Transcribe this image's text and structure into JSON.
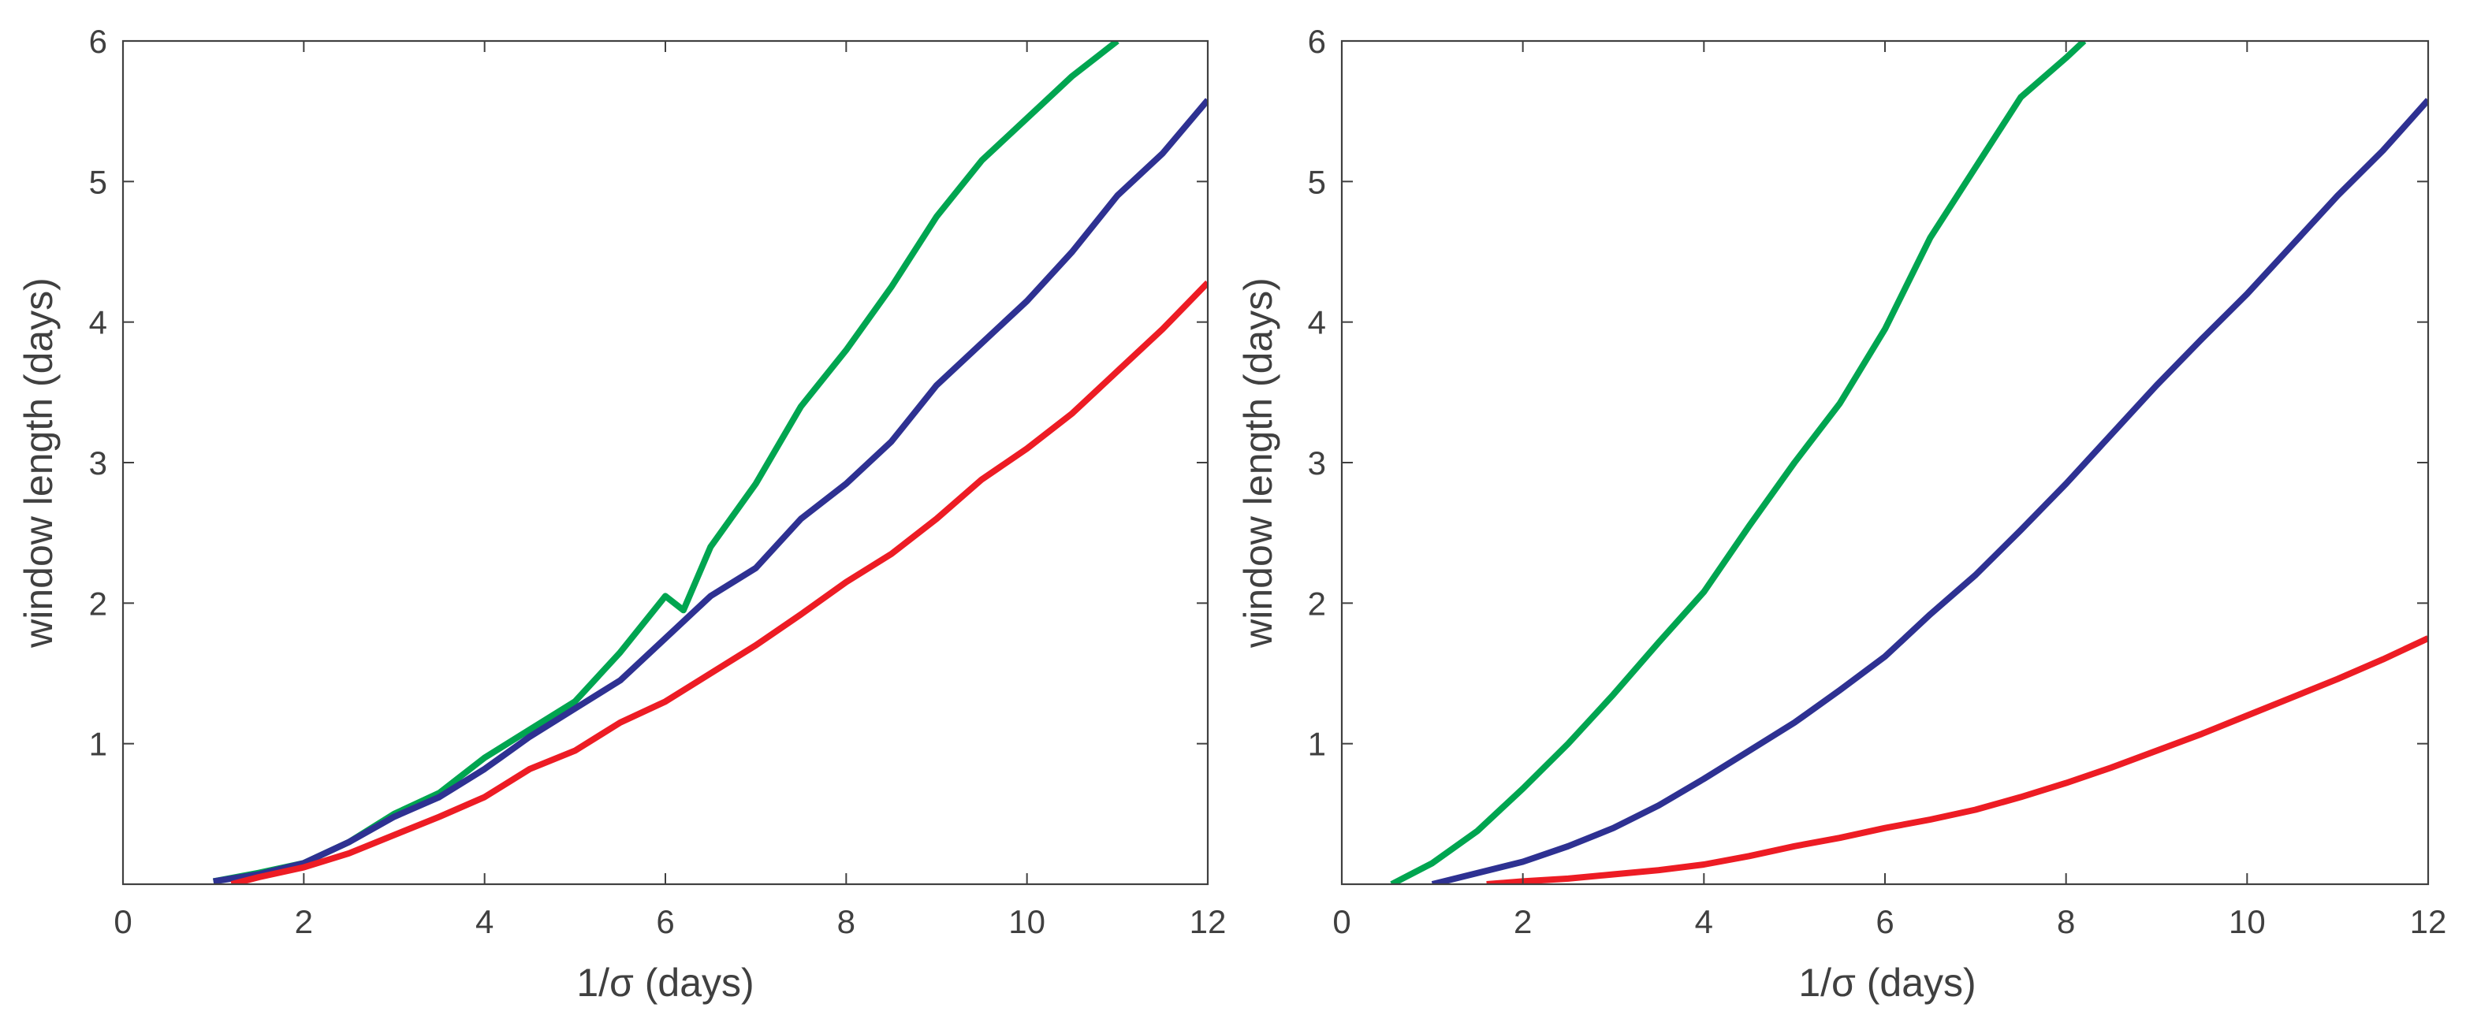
{
  "chart_data": [
    {
      "type": "line",
      "title": "",
      "xlabel": "1/σ (days)",
      "ylabel": "window length (days)",
      "xlim": [
        0,
        12
      ],
      "ylim": [
        0.0,
        6
      ],
      "xticks": [
        0,
        2,
        4,
        6,
        8,
        10,
        12
      ],
      "xtick_labels": [
        "0",
        "2",
        "4",
        "6",
        "8",
        "10",
        "12"
      ],
      "yticks": [
        1,
        2,
        3,
        4,
        5,
        6
      ],
      "ytick_labels": [
        "1",
        "2",
        "3",
        "4",
        "5",
        "6"
      ],
      "grid": false,
      "series": [
        {
          "name": "green",
          "color": "#00a550",
          "x": [
            1.0,
            1.5,
            2.0,
            2.5,
            3.0,
            3.5,
            4.0,
            4.5,
            5.0,
            5.5,
            6.0,
            6.2,
            6.5,
            7.0,
            7.5,
            8.0,
            8.5,
            9.0,
            9.5,
            10.0,
            10.5,
            11.0
          ],
          "y": [
            0.02,
            0.08,
            0.15,
            0.3,
            0.5,
            0.65,
            0.9,
            1.1,
            1.3,
            1.65,
            2.05,
            1.95,
            2.4,
            2.85,
            3.4,
            3.8,
            4.25,
            4.75,
            5.15,
            5.45,
            5.75,
            6.0
          ]
        },
        {
          "name": "blue",
          "color": "#2e3192",
          "x": [
            1.0,
            1.5,
            2.0,
            2.5,
            3.0,
            3.5,
            4.0,
            4.5,
            5.0,
            5.5,
            6.0,
            6.5,
            7.0,
            7.5,
            8.0,
            8.5,
            9.0,
            9.5,
            10.0,
            10.5,
            11.0,
            11.5,
            12.0
          ],
          "y": [
            0.02,
            0.07,
            0.15,
            0.3,
            0.48,
            0.62,
            0.82,
            1.05,
            1.25,
            1.45,
            1.75,
            2.05,
            2.25,
            2.6,
            2.85,
            3.15,
            3.55,
            3.85,
            4.15,
            4.5,
            4.9,
            5.2,
            5.58
          ]
        },
        {
          "name": "red",
          "color": "#ed1c24",
          "x": [
            1.2,
            1.5,
            2.0,
            2.5,
            3.0,
            3.5,
            4.0,
            4.5,
            5.0,
            5.5,
            6.0,
            6.5,
            7.0,
            7.5,
            8.0,
            8.5,
            9.0,
            9.5,
            10.0,
            10.5,
            11.0,
            11.5,
            12.0
          ],
          "y": [
            0.0,
            0.05,
            0.12,
            0.22,
            0.35,
            0.48,
            0.62,
            0.82,
            0.95,
            1.15,
            1.3,
            1.5,
            1.7,
            1.92,
            2.15,
            2.35,
            2.6,
            2.88,
            3.1,
            3.35,
            3.65,
            3.95,
            4.28
          ]
        }
      ]
    },
    {
      "type": "line",
      "title": "",
      "xlabel": "1/σ (days)",
      "ylabel": "window length (days)",
      "xlim": [
        0,
        12
      ],
      "ylim": [
        0.0,
        6
      ],
      "xticks": [
        0,
        2,
        4,
        6,
        8,
        10,
        12
      ],
      "xtick_labels": [
        "0",
        "2",
        "4",
        "6",
        "8",
        "10",
        "12"
      ],
      "yticks": [
        1,
        2,
        3,
        4,
        5,
        6
      ],
      "ytick_labels": [
        "1",
        "2",
        "3",
        "4",
        "5",
        "6"
      ],
      "grid": false,
      "series": [
        {
          "name": "green",
          "color": "#00a550",
          "x": [
            0.55,
            1.0,
            1.5,
            2.0,
            2.5,
            3.0,
            3.5,
            4.0,
            4.5,
            5.0,
            5.5,
            6.0,
            6.5,
            7.0,
            7.5,
            8.0,
            8.2
          ],
          "y": [
            0.0,
            0.15,
            0.38,
            0.68,
            1.0,
            1.35,
            1.72,
            2.08,
            2.55,
            3.0,
            3.42,
            3.95,
            4.6,
            5.1,
            5.6,
            5.88,
            6.0
          ]
        },
        {
          "name": "blue",
          "color": "#2e3192",
          "x": [
            1.0,
            1.5,
            2.0,
            2.5,
            3.0,
            3.5,
            4.0,
            4.5,
            5.0,
            5.5,
            6.0,
            6.5,
            7.0,
            7.5,
            8.0,
            8.5,
            9.0,
            9.5,
            10.0,
            10.5,
            11.0,
            11.5,
            12.0
          ],
          "y": [
            0.0,
            0.08,
            0.16,
            0.27,
            0.4,
            0.56,
            0.75,
            0.95,
            1.15,
            1.38,
            1.62,
            1.92,
            2.2,
            2.52,
            2.85,
            3.2,
            3.55,
            3.88,
            4.2,
            4.55,
            4.9,
            5.22,
            5.58
          ]
        },
        {
          "name": "red",
          "color": "#ed1c24",
          "x": [
            1.6,
            2.0,
            2.5,
            3.0,
            3.5,
            4.0,
            4.5,
            5.0,
            5.5,
            6.0,
            6.5,
            7.0,
            7.5,
            8.0,
            8.5,
            9.0,
            9.5,
            10.0,
            10.5,
            11.0,
            11.5,
            12.0
          ],
          "y": [
            0.0,
            0.02,
            0.04,
            0.07,
            0.1,
            0.14,
            0.2,
            0.27,
            0.33,
            0.4,
            0.46,
            0.53,
            0.62,
            0.72,
            0.83,
            0.95,
            1.07,
            1.2,
            1.33,
            1.46,
            1.6,
            1.75
          ]
        }
      ]
    }
  ]
}
